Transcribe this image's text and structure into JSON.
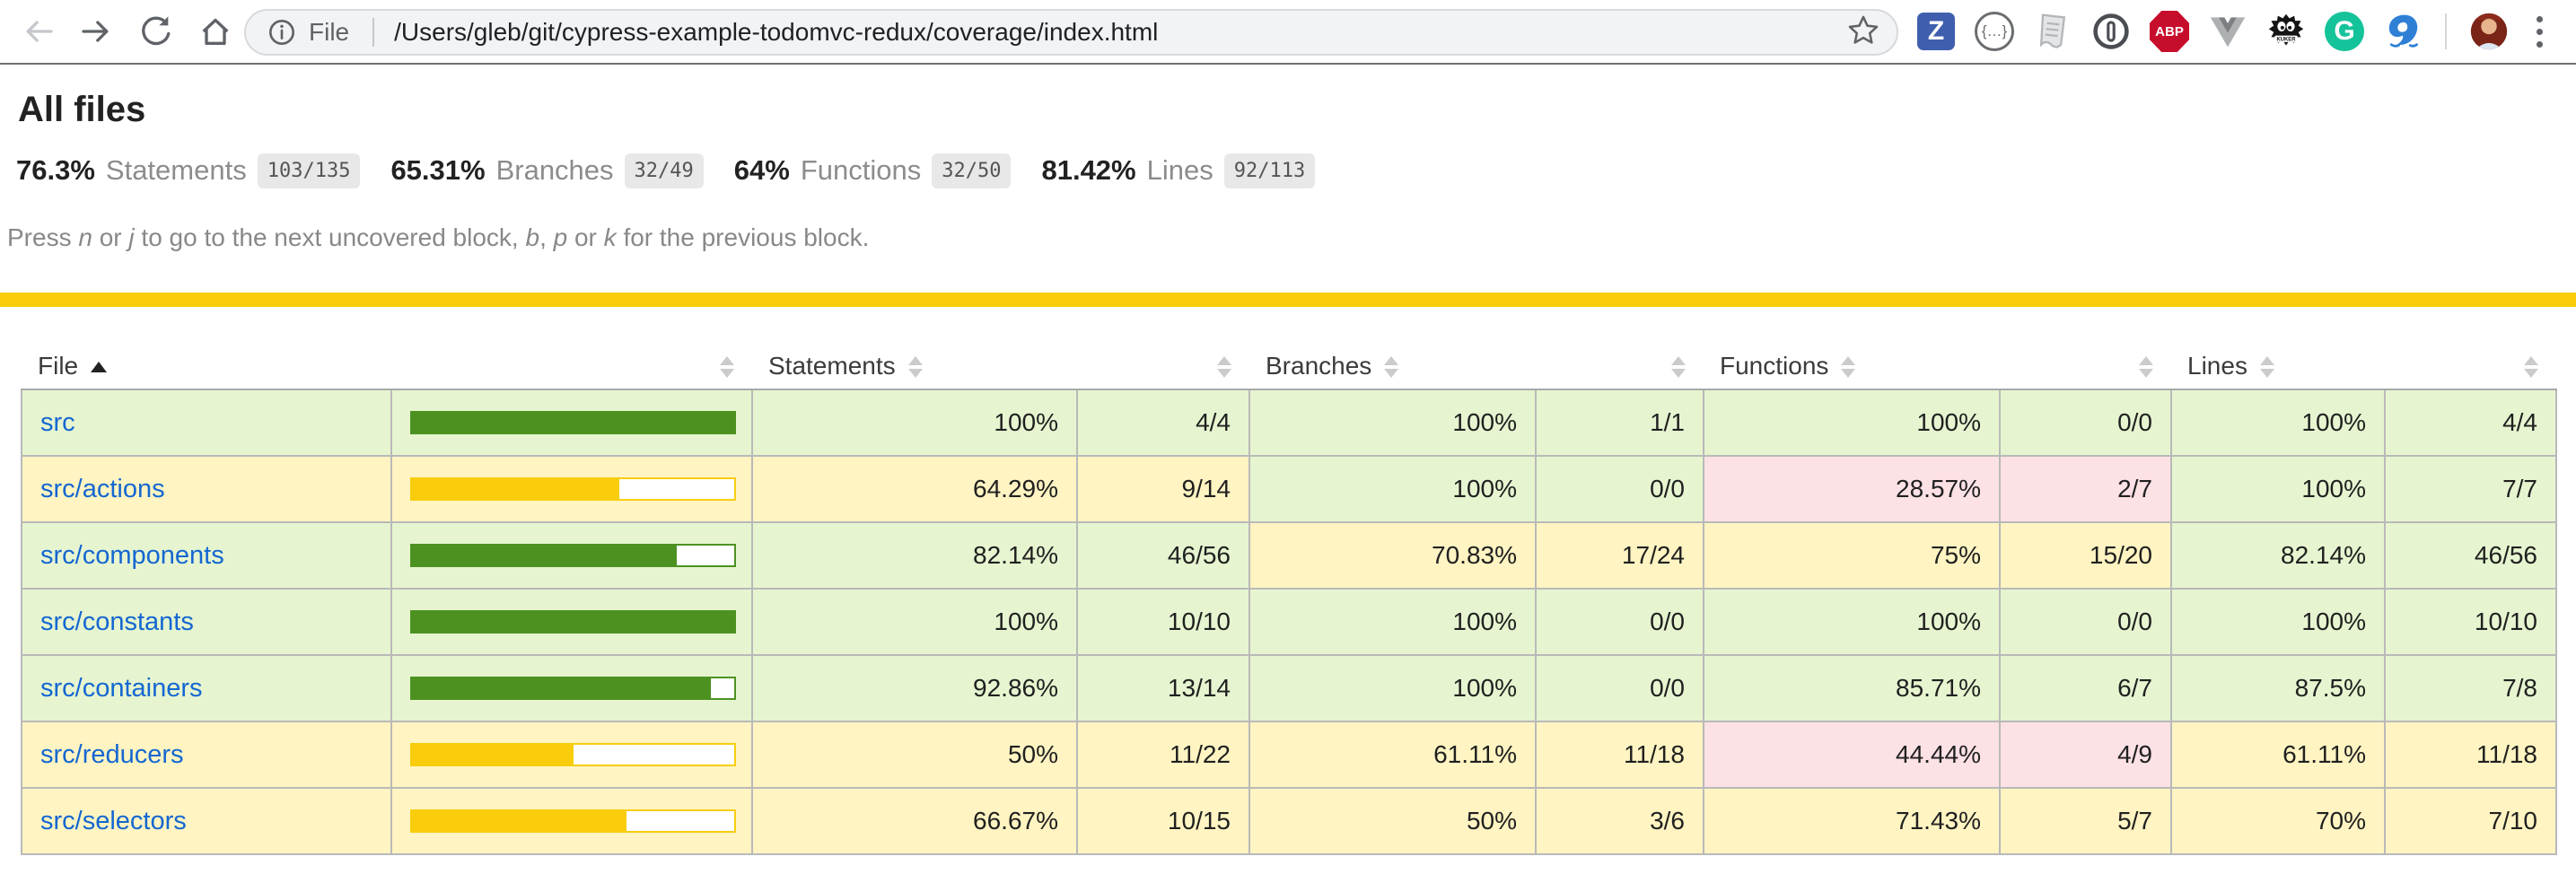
{
  "browser": {
    "address": {
      "scheme_label": "File",
      "url": "/Users/gleb/git/cypress-example-todomvc-redux/coverage/index.html"
    },
    "extension_badges": {
      "zotero": "Z",
      "json_viewer": "{…}",
      "adblock_plus": "ABP",
      "kuker": "KUKER",
      "grammarly": "G"
    }
  },
  "page": {
    "title": "All files",
    "stats": [
      {
        "pct": "76.3%",
        "label": "Statements",
        "fraction": "103/135"
      },
      {
        "pct": "65.31%",
        "label": "Branches",
        "fraction": "32/49"
      },
      {
        "pct": "64%",
        "label": "Functions",
        "fraction": "32/50"
      },
      {
        "pct": "81.42%",
        "label": "Lines",
        "fraction": "92/113"
      }
    ],
    "hint_segments": [
      {
        "t": "Press "
      },
      {
        "t": "n",
        "em": true
      },
      {
        "t": " or "
      },
      {
        "t": "j",
        "em": true
      },
      {
        "t": " to go to the next uncovered block, "
      },
      {
        "t": "b",
        "em": true
      },
      {
        "t": ", "
      },
      {
        "t": "p",
        "em": true
      },
      {
        "t": " or "
      },
      {
        "t": "k",
        "em": true
      },
      {
        "t": " for the previous block."
      }
    ],
    "colors": {
      "status_line": "#f9cd0c",
      "high_bg": "#e6f5d0",
      "medium_bg": "#fff4c2",
      "low_bg": "#fce1e5",
      "bar_high_fill": "#4d9221",
      "bar_medium_fill": "#f9cd0c",
      "link": "#1467d1"
    },
    "table": {
      "headers": {
        "file": "File",
        "statements": "Statements",
        "branches": "Branches",
        "functions": "Functions",
        "lines": "Lines"
      },
      "sort": {
        "column": "File",
        "direction": "asc"
      },
      "rows": [
        {
          "file": "src",
          "row_class": "high",
          "bar_pct": 100,
          "bar_class": "high",
          "statements": {
            "pct": "100%",
            "pct_class": "high",
            "abs": "4/4",
            "abs_class": "high"
          },
          "branches": {
            "pct": "100%",
            "pct_class": "high",
            "abs": "1/1",
            "abs_class": "high"
          },
          "functions": {
            "pct": "100%",
            "pct_class": "high",
            "abs": "0/0",
            "abs_class": "high"
          },
          "lines": {
            "pct": "100%",
            "pct_class": "high",
            "abs": "4/4",
            "abs_class": "high"
          }
        },
        {
          "file": "src/actions",
          "row_class": "medium",
          "bar_pct": 64.29,
          "bar_class": "medium",
          "statements": {
            "pct": "64.29%",
            "pct_class": "medium",
            "abs": "9/14",
            "abs_class": "medium"
          },
          "branches": {
            "pct": "100%",
            "pct_class": "high",
            "abs": "0/0",
            "abs_class": "high"
          },
          "functions": {
            "pct": "28.57%",
            "pct_class": "low",
            "abs": "2/7",
            "abs_class": "low"
          },
          "lines": {
            "pct": "100%",
            "pct_class": "high",
            "abs": "7/7",
            "abs_class": "high"
          }
        },
        {
          "file": "src/components",
          "row_class": "high",
          "bar_pct": 82.14,
          "bar_class": "high",
          "statements": {
            "pct": "82.14%",
            "pct_class": "high",
            "abs": "46/56",
            "abs_class": "high"
          },
          "branches": {
            "pct": "70.83%",
            "pct_class": "medium",
            "abs": "17/24",
            "abs_class": "medium"
          },
          "functions": {
            "pct": "75%",
            "pct_class": "medium",
            "abs": "15/20",
            "abs_class": "medium"
          },
          "lines": {
            "pct": "82.14%",
            "pct_class": "high",
            "abs": "46/56",
            "abs_class": "high"
          }
        },
        {
          "file": "src/constants",
          "row_class": "high",
          "bar_pct": 100,
          "bar_class": "high",
          "statements": {
            "pct": "100%",
            "pct_class": "high",
            "abs": "10/10",
            "abs_class": "high"
          },
          "branches": {
            "pct": "100%",
            "pct_class": "high",
            "abs": "0/0",
            "abs_class": "high"
          },
          "functions": {
            "pct": "100%",
            "pct_class": "high",
            "abs": "0/0",
            "abs_class": "high"
          },
          "lines": {
            "pct": "100%",
            "pct_class": "high",
            "abs": "10/10",
            "abs_class": "high"
          }
        },
        {
          "file": "src/containers",
          "row_class": "high",
          "bar_pct": 92.86,
          "bar_class": "high",
          "statements": {
            "pct": "92.86%",
            "pct_class": "high",
            "abs": "13/14",
            "abs_class": "high"
          },
          "branches": {
            "pct": "100%",
            "pct_class": "high",
            "abs": "0/0",
            "abs_class": "high"
          },
          "functions": {
            "pct": "85.71%",
            "pct_class": "high",
            "abs": "6/7",
            "abs_class": "high"
          },
          "lines": {
            "pct": "87.5%",
            "pct_class": "high",
            "abs": "7/8",
            "abs_class": "high"
          }
        },
        {
          "file": "src/reducers",
          "row_class": "medium",
          "bar_pct": 50,
          "bar_class": "medium",
          "statements": {
            "pct": "50%",
            "pct_class": "medium",
            "abs": "11/22",
            "abs_class": "medium"
          },
          "branches": {
            "pct": "61.11%",
            "pct_class": "medium",
            "abs": "11/18",
            "abs_class": "medium"
          },
          "functions": {
            "pct": "44.44%",
            "pct_class": "low",
            "abs": "4/9",
            "abs_class": "low"
          },
          "lines": {
            "pct": "61.11%",
            "pct_class": "medium",
            "abs": "11/18",
            "abs_class": "medium"
          }
        },
        {
          "file": "src/selectors",
          "row_class": "medium",
          "bar_pct": 66.67,
          "bar_class": "medium",
          "statements": {
            "pct": "66.67%",
            "pct_class": "medium",
            "abs": "10/15",
            "abs_class": "medium"
          },
          "branches": {
            "pct": "50%",
            "pct_class": "medium",
            "abs": "3/6",
            "abs_class": "medium"
          },
          "functions": {
            "pct": "71.43%",
            "pct_class": "medium",
            "abs": "5/7",
            "abs_class": "medium"
          },
          "lines": {
            "pct": "70%",
            "pct_class": "medium",
            "abs": "7/10",
            "abs_class": "medium"
          }
        }
      ]
    }
  }
}
